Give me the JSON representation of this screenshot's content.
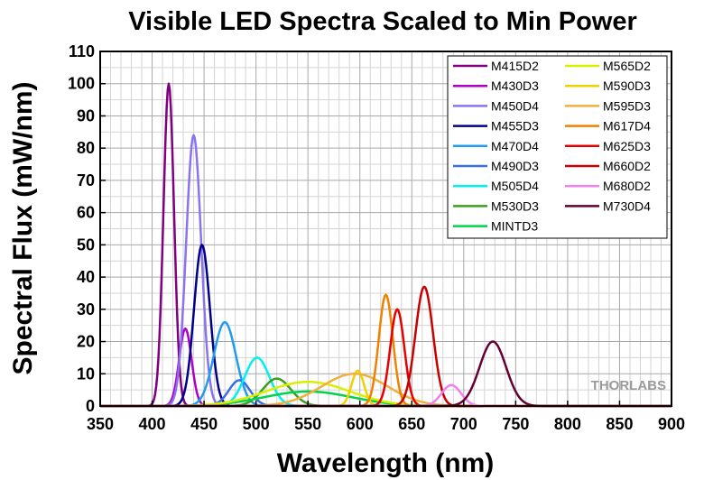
{
  "chart_data": {
    "type": "line",
    "title": "Visible LED Spectra Scaled to Min Power",
    "xlabel": "Wavelength (nm)",
    "ylabel": "Spectral Flux (mW/nm)",
    "xlim": [
      350,
      900
    ],
    "ylim": [
      0,
      110
    ],
    "x_ticks": [
      "350",
      "400",
      "450",
      "500",
      "550",
      "600",
      "650",
      "700",
      "750",
      "800",
      "850",
      "900"
    ],
    "y_ticks": [
      "0",
      "10",
      "20",
      "30",
      "40",
      "50",
      "60",
      "70",
      "80",
      "90",
      "100",
      "110"
    ],
    "grid": true,
    "legend_position": "top-right",
    "series": [
      {
        "name": "M415D2",
        "color": "#800080",
        "peak": 416,
        "amplitude": 100,
        "fwhm": 12
      },
      {
        "name": "M430D3",
        "color": "#b000c8",
        "peak": 432,
        "amplitude": 24,
        "fwhm": 14
      },
      {
        "name": "M450D4",
        "color": "#8a72f0",
        "peak": 440,
        "amplitude": 84,
        "fwhm": 17
      },
      {
        "name": "M455D3",
        "color": "#00008b",
        "peak": 448,
        "amplitude": 50,
        "fwhm": 18
      },
      {
        "name": "M470D4",
        "color": "#1f9cf0",
        "peak": 470,
        "amplitude": 26,
        "fwhm": 25
      },
      {
        "name": "M490D3",
        "color": "#3a6ee8",
        "peak": 484,
        "amplitude": 8,
        "fwhm": 24
      },
      {
        "name": "M505D4",
        "color": "#00f0f0",
        "peak": 501,
        "amplitude": 15,
        "fwhm": 28
      },
      {
        "name": "M530D3",
        "color": "#3ca01e",
        "peak": 520,
        "amplitude": 8.5,
        "fwhm": 32
      },
      {
        "name": "MINTD3",
        "color": "#00d24a",
        "peak": 550,
        "amplitude": 4.5,
        "fwhm": 100
      },
      {
        "name": "M565D2",
        "color": "#d8f000",
        "peak": 550,
        "amplitude": 7.5,
        "fwhm": 95
      },
      {
        "name": "M590D3",
        "color": "#f0d200",
        "peak": 598,
        "amplitude": 11,
        "fwhm": 14
      },
      {
        "name": "M595D3",
        "color": "#f0b040",
        "peak": 595,
        "amplitude": 10,
        "fwhm": 75
      },
      {
        "name": "M617D4",
        "color": "#f08200",
        "peak": 625,
        "amplitude": 34.5,
        "fwhm": 16
      },
      {
        "name": "M625D3",
        "color": "#e60000",
        "peak": 636,
        "amplitude": 30,
        "fwhm": 16
      },
      {
        "name": "M660D2",
        "color": "#c80000",
        "peak": 662,
        "amplitude": 37,
        "fwhm": 20
      },
      {
        "name": "M680D2",
        "color": "#f080f0",
        "peak": 688,
        "amplitude": 6.5,
        "fwhm": 22
      },
      {
        "name": "M730D4",
        "color": "#640032",
        "peak": 728,
        "amplitude": 20,
        "fwhm": 30
      }
    ]
  },
  "watermark": "THORLABS"
}
